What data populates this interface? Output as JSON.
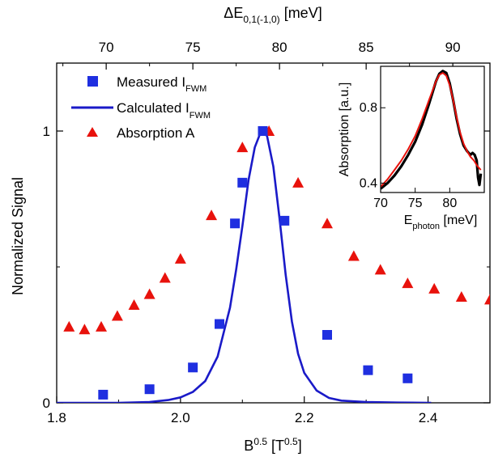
{
  "chart_data": [
    {
      "type": "scatter",
      "title": "",
      "xlabel": {
        "base": "B",
        "sup": "0.5",
        "unit_open": " [T",
        "unit_sup": "0.5",
        "unit_close": "]"
      },
      "ylabel": "Normalized Signal",
      "top_xlabel": {
        "prefix": "ΔE",
        "sub": "0,1(-1,0)",
        "suffix": " [meV]"
      },
      "xlim": [
        1.8,
        2.5
      ],
      "ylim": [
        0,
        1.25
      ],
      "x_ticks": [
        "1.8",
        "2.0",
        "2.2",
        "2.4"
      ],
      "y_ticks": [
        "0",
        "1"
      ],
      "top_ticks": [
        "70",
        "75",
        "80",
        "85",
        "90"
      ],
      "top_tick_positions_B": [
        1.88,
        2.02,
        2.16,
        2.3,
        2.44
      ],
      "legend": {
        "placement": "top-left",
        "entries": [
          {
            "key": "measured",
            "text": "Measured I",
            "sub": "FWM",
            "marker": "square"
          },
          {
            "key": "calculated",
            "text": "Calculated  I",
            "sub": "FWM",
            "marker": "line"
          },
          {
            "key": "absorption",
            "text": "Absorption A",
            "sub": "",
            "marker": "triangle"
          }
        ]
      },
      "colors": {
        "measured": "#1f2fe0",
        "calculated": "#1a1ac8",
        "absorption": "#e8120c"
      },
      "series": [
        {
          "name": "Measured I FWM",
          "marker": "square",
          "x": [
            1.875,
            1.95,
            2.02,
            2.063,
            2.088,
            2.1,
            2.133,
            2.168,
            2.237,
            2.303,
            2.367
          ],
          "y": [
            0.03,
            0.05,
            0.13,
            0.29,
            0.66,
            0.81,
            1.0,
            0.67,
            0.25,
            0.12,
            0.09
          ]
        },
        {
          "name": "Calculated I FWM",
          "marker": "line",
          "x": [
            1.8,
            1.9,
            1.95,
            1.98,
            2.0,
            2.02,
            2.04,
            2.06,
            2.08,
            2.09,
            2.1,
            2.11,
            2.12,
            2.13,
            2.135,
            2.14,
            2.15,
            2.16,
            2.17,
            2.18,
            2.19,
            2.2,
            2.22,
            2.24,
            2.26,
            2.3,
            2.35,
            2.405
          ],
          "y": [
            0.0,
            0.0,
            0.003,
            0.01,
            0.02,
            0.04,
            0.08,
            0.17,
            0.35,
            0.49,
            0.65,
            0.82,
            0.94,
            0.998,
            1.0,
            0.98,
            0.87,
            0.68,
            0.47,
            0.3,
            0.18,
            0.11,
            0.045,
            0.018,
            0.008,
            0.003,
            0.001,
            0.0
          ]
        },
        {
          "name": "Absorption A",
          "marker": "triangle",
          "x": [
            1.82,
            1.845,
            1.872,
            1.898,
            1.925,
            1.95,
            1.975,
            2.0,
            2.05,
            2.1,
            2.143,
            2.19,
            2.237,
            2.28,
            2.323,
            2.367,
            2.41,
            2.454,
            2.5
          ],
          "y": [
            0.28,
            0.27,
            0.28,
            0.32,
            0.36,
            0.4,
            0.46,
            0.53,
            0.69,
            0.94,
            1.0,
            0.81,
            0.66,
            0.54,
            0.49,
            0.44,
            0.42,
            0.39,
            0.38
          ]
        }
      ]
    },
    {
      "type": "line",
      "title": "",
      "xlabel": {
        "base": "E",
        "sub": "photon",
        "suffix": " [meV]"
      },
      "ylabel": "Absorption [a.u.]",
      "xlim": [
        70,
        85
      ],
      "ylim": [
        0.35,
        1.02
      ],
      "x_ticks": [
        70,
        75,
        80
      ],
      "y_ticks": [
        0.4,
        0.8
      ],
      "colors": {
        "measured": "#000000",
        "fit": "#e8120c"
      },
      "series": [
        {
          "name": "measured",
          "x": [
            70,
            71,
            72,
            73,
            74,
            75,
            76,
            77,
            77.5,
            78,
            78.5,
            79,
            79.5,
            80,
            80.5,
            81,
            81.5,
            82,
            82.5,
            83,
            83.3,
            83.6,
            83.9,
            84.1,
            84.3,
            84.5
          ],
          "y": [
            0.37,
            0.4,
            0.44,
            0.49,
            0.55,
            0.62,
            0.71,
            0.82,
            0.88,
            0.94,
            0.98,
            0.995,
            0.985,
            0.93,
            0.84,
            0.74,
            0.66,
            0.6,
            0.57,
            0.55,
            0.56,
            0.55,
            0.52,
            0.43,
            0.39,
            0.45
          ]
        },
        {
          "name": "fit",
          "x": [
            70,
            71,
            72,
            73,
            74,
            75,
            76,
            77,
            77.5,
            78,
            78.5,
            79,
            79.5,
            80,
            80.5,
            81,
            81.5,
            82,
            82.5,
            83,
            83.5,
            84,
            84.5
          ],
          "y": [
            0.38,
            0.42,
            0.47,
            0.52,
            0.58,
            0.65,
            0.74,
            0.84,
            0.89,
            0.94,
            0.975,
            0.985,
            0.97,
            0.92,
            0.84,
            0.75,
            0.67,
            0.61,
            0.57,
            0.54,
            0.52,
            0.49,
            0.47
          ]
        }
      ]
    }
  ]
}
